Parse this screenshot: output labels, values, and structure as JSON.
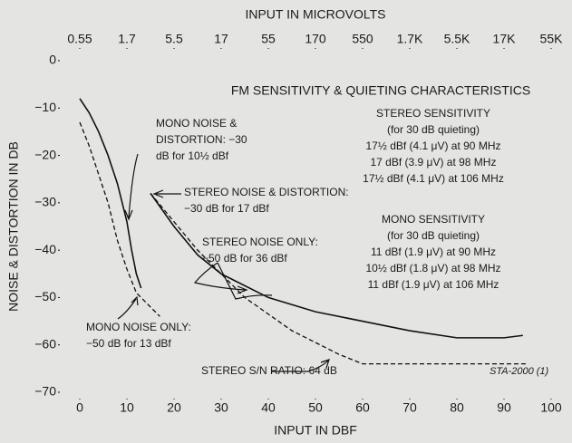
{
  "chart_data": {
    "type": "line",
    "xlabel": "INPUT IN DBF",
    "x2label": "INPUT IN MICROVOLTS",
    "ylabel": "NOISE & DISTORTION IN DB",
    "xlim": [
      0,
      100
    ],
    "xticks": [
      0,
      10,
      20,
      30,
      40,
      50,
      60,
      70,
      80,
      90,
      100
    ],
    "x2ticks": [
      {
        "value": 0,
        "label": "0.55"
      },
      {
        "value": 10,
        "label": "1.7"
      },
      {
        "value": 20,
        "label": "5.5"
      },
      {
        "value": 30,
        "label": "17"
      },
      {
        "value": 40,
        "label": "55"
      },
      {
        "value": 50,
        "label": "170"
      },
      {
        "value": 60,
        "label": "550"
      },
      {
        "value": 70,
        "label": "1.7K"
      },
      {
        "value": 80,
        "label": "5.5K"
      },
      {
        "value": 90,
        "label": "17K"
      },
      {
        "value": 100,
        "label": "55K"
      }
    ],
    "ylim": [
      -70,
      0
    ],
    "yticks": [
      0,
      {
        "value": -10,
        "label": "−10"
      },
      {
        "value": -20,
        "label": "−20"
      },
      {
        "value": -30,
        "label": "−30"
      },
      {
        "value": -40,
        "label": "−40"
      },
      {
        "value": -50,
        "label": "−50"
      },
      {
        "value": -60,
        "label": "−60"
      },
      {
        "value": -70,
        "label": "−70"
      }
    ],
    "series": [
      {
        "color": "#111111",
        "dash": false,
        "x": [
          0,
          2,
          4,
          6,
          8,
          10,
          11,
          12,
          13
        ],
        "values": [
          -8,
          -11,
          -15,
          -20,
          -26,
          -34,
          -40,
          -45,
          -48
        ]
      },
      {
        "color": "#111111",
        "dash": true,
        "x": [
          0,
          2,
          4,
          6,
          8,
          10,
          12,
          14,
          16,
          17
        ],
        "values": [
          -13,
          -18,
          -24,
          -30,
          -38,
          -44,
          -49,
          -51,
          -53,
          -54
        ]
      },
      {
        "color": "#111111",
        "dash": false,
        "x": [
          15,
          20,
          25,
          30,
          40,
          50,
          60,
          70,
          80,
          90,
          94
        ],
        "values": [
          -28,
          -35,
          -41,
          -45,
          -50,
          -53,
          -55,
          -57,
          -58.5,
          -58.5,
          -58
        ]
      },
      {
        "color": "#111111",
        "dash": true,
        "x": [
          15,
          25,
          35,
          45,
          55,
          60,
          70,
          80,
          95
        ],
        "values": [
          -28,
          -40,
          -50,
          -57,
          -62,
          -64,
          -64,
          -64,
          -64
        ]
      }
    ],
    "annotations": [
      {
        "lines": [
          "FM SENSITIVITY & QUIETING CHARACTERISTICS"
        ]
      },
      {
        "lines": [
          "STEREO SENSITIVITY",
          "(for 30 dB quieting)",
          "17½ dBf (4.1 μV) at 90 MHz",
          "17 dBf (3.9 μV) at 98 MHz",
          "17½ dBf (4.1 μV) at 106 MHz"
        ]
      },
      {
        "lines": [
          "MONO SENSITIVITY",
          "(for 30 dB quieting)",
          "11 dBf (1.9 μV) at 90 MHz",
          "10½ dBf (1.8 μV) at 98 MHz",
          "11 dBf (1.9 μV) at 106 MHz"
        ]
      },
      {
        "lines": [
          "MONO NOISE &",
          "DISTORTION: −30",
          "dB for 10½ dBf"
        ]
      },
      {
        "lines": [
          "STEREO NOISE & DISTORTION:",
          "−30 dB for 17 dBf"
        ]
      },
      {
        "lines": [
          "STEREO NOISE ONLY:",
          "−50 dB for 36 dBf"
        ]
      },
      {
        "lines": [
          "MONO NOISE ONLY:",
          "−50 dB for 13 dBf"
        ]
      },
      {
        "lines": [
          "STEREO S/N RATIO: 64 dB"
        ]
      },
      {
        "lines": [
          "STA-2000 (1)"
        ]
      }
    ]
  }
}
